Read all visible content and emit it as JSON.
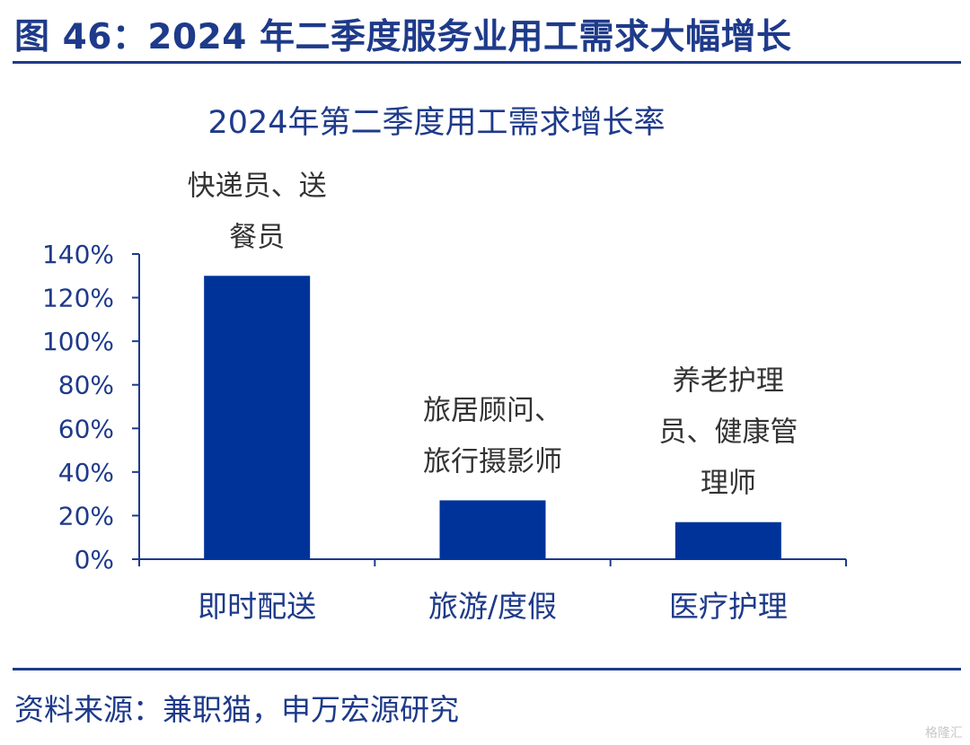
{
  "figure": {
    "title": "图 46：2024 年二季度服务业用工需求大幅增长",
    "source": "资料来源：兼职猫，申万宏源研究",
    "watermark": "格隆汇"
  },
  "colors": {
    "bar": "#003399",
    "text": "#1e3a8a",
    "axis": "#1e3a8a"
  },
  "chart_data": {
    "type": "bar",
    "title": "2024年第二季度用工需求增长率",
    "categories": [
      "即时配送",
      "旅游/度假",
      "医疗护理"
    ],
    "values": [
      130,
      27,
      17
    ],
    "value_unit": "%",
    "ylim": [
      0,
      140
    ],
    "yticks": [
      "0%",
      "20%",
      "40%",
      "60%",
      "80%",
      "100%",
      "120%",
      "140%"
    ],
    "annotations": [
      [
        "快递员、送",
        "餐员"
      ],
      [
        "旅居顾问、",
        "旅行摄影师"
      ],
      [
        "养老护理",
        "员、健康管",
        "理师"
      ]
    ],
    "xlabel": "",
    "ylabel": "",
    "grid": false,
    "legend": "none"
  }
}
